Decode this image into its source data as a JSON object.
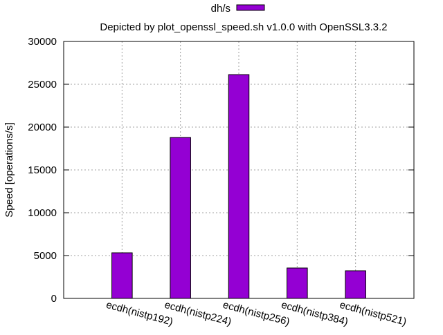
{
  "chart_data": {
    "type": "bar",
    "title": "Depicted by plot_openssl_speed.sh v1.0.0 with OpenSSL3.3.2",
    "xlabel": "",
    "ylabel": "Speed [operations/s]",
    "categories": [
      "ecdh(nistp192)",
      "ecdh(nistp224)",
      "ecdh(nistp256)",
      "ecdh(nistp384)",
      "ecdh(nistp521)"
    ],
    "series": [
      {
        "name": "dh/s",
        "values": [
          5323,
          18790,
          26129,
          3548,
          3226
        ],
        "color": "#9400d3"
      }
    ],
    "ylim": [
      0,
      30000
    ],
    "yticks": [
      0,
      5000,
      10000,
      15000,
      20000,
      25000,
      30000
    ],
    "grid": true,
    "legend_position": "top-center"
  }
}
